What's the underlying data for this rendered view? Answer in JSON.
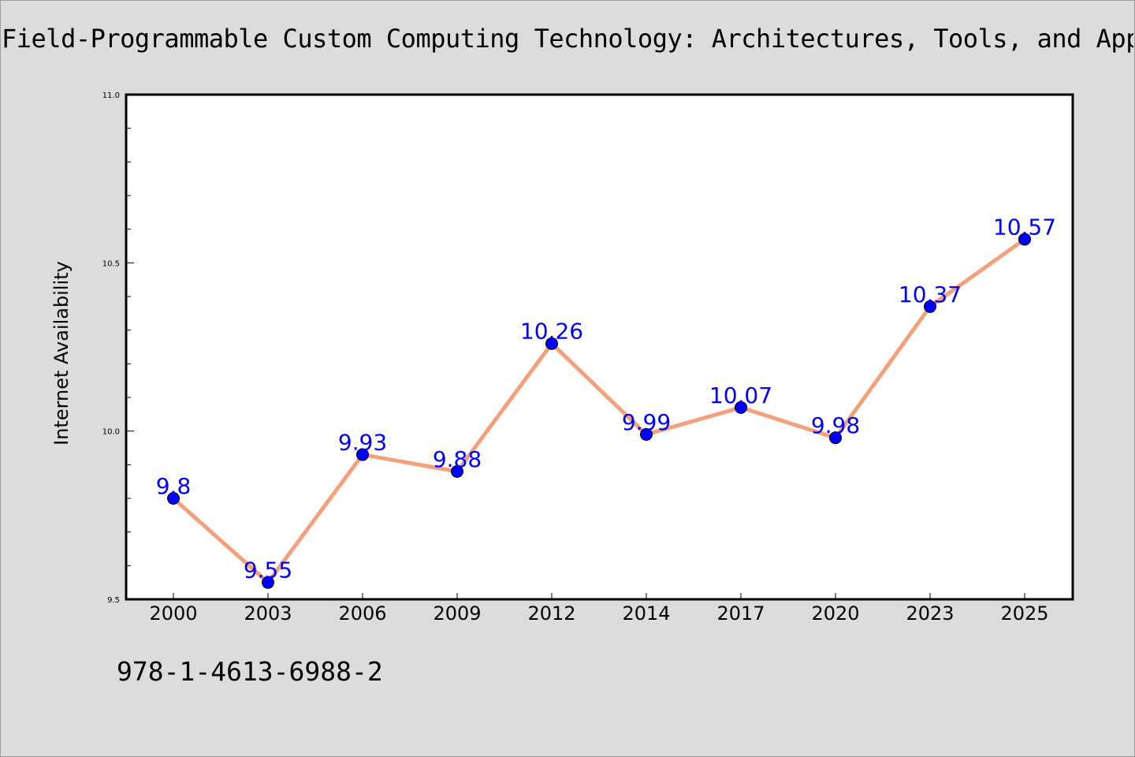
{
  "title": "Field-Programmable Custom Computing Technology: Architectures, Tools, and Applications",
  "isbn": "978-1-4613-6988-2",
  "colors": {
    "background": "#dcdcdc",
    "plot_background": "#ffffff",
    "line": "#f4a07c",
    "marker": "#0000ff",
    "label": "#0000ff"
  },
  "chart_data": {
    "type": "line",
    "title": "Field-Programmable Custom Computing Technology: Architectures, Tools, and Applications",
    "xlabel": "",
    "ylabel": "Internet Availability",
    "categories": [
      "2000",
      "2003",
      "2006",
      "2009",
      "2012",
      "2014",
      "2017",
      "2020",
      "2023",
      "2025"
    ],
    "series": [
      {
        "values": [
          9.8,
          9.55,
          9.93,
          9.88,
          10.26,
          9.99,
          10.07,
          9.98,
          10.37,
          10.57
        ],
        "labels": [
          "9.8",
          "9.55",
          "9.93",
          "9.88",
          "10.26",
          "9.99",
          "10.07",
          "9.98",
          "10.37",
          "10.57"
        ]
      }
    ],
    "ylim": [
      9.5,
      11.0
    ],
    "yticks": [
      "9.5",
      "10.0",
      "10.5",
      "11.0"
    ],
    "grid": false,
    "legend": "none"
  }
}
